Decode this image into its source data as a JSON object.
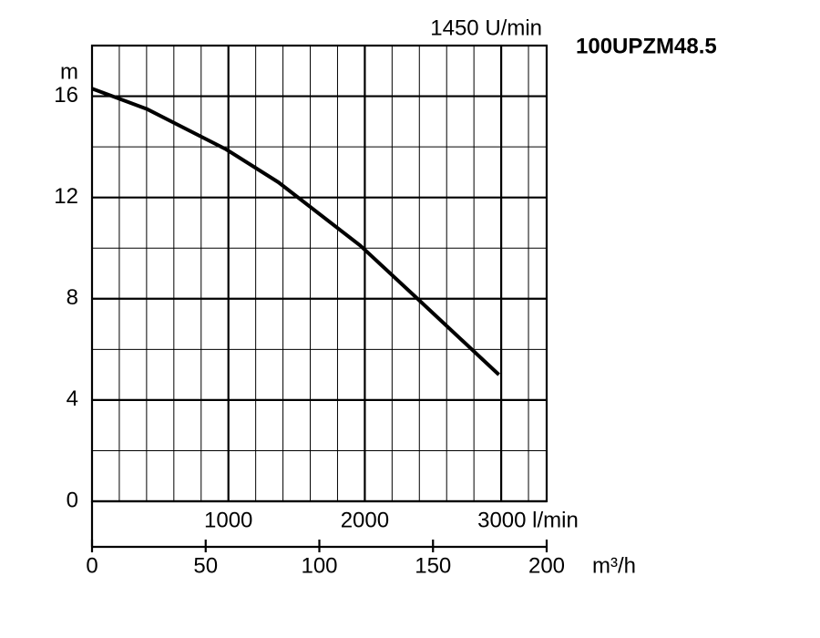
{
  "chart_data": {
    "type": "line",
    "title": "100UPZM48.5",
    "subtitle": "1450 U/min",
    "y_label": "m",
    "x_label": "m³/h",
    "x": [
      0,
      24,
      59,
      82,
      118,
      142,
      179
    ],
    "values": [
      16.3,
      15.5,
      13.9,
      12.6,
      10.1,
      8.1,
      5.0
    ],
    "color": "#000000",
    "xlim": [
      0,
      200
    ],
    "xticks": [
      0,
      50,
      100,
      150,
      200
    ],
    "ylim": [
      0,
      18
    ],
    "yticks": [
      0,
      4,
      8,
      12,
      16
    ],
    "x2lim": [
      0,
      3333.33
    ],
    "x2ticks": [
      1000,
      2000,
      {
        "value": 3000,
        "label": "3000 l/min"
      }
    ],
    "grid": true
  }
}
